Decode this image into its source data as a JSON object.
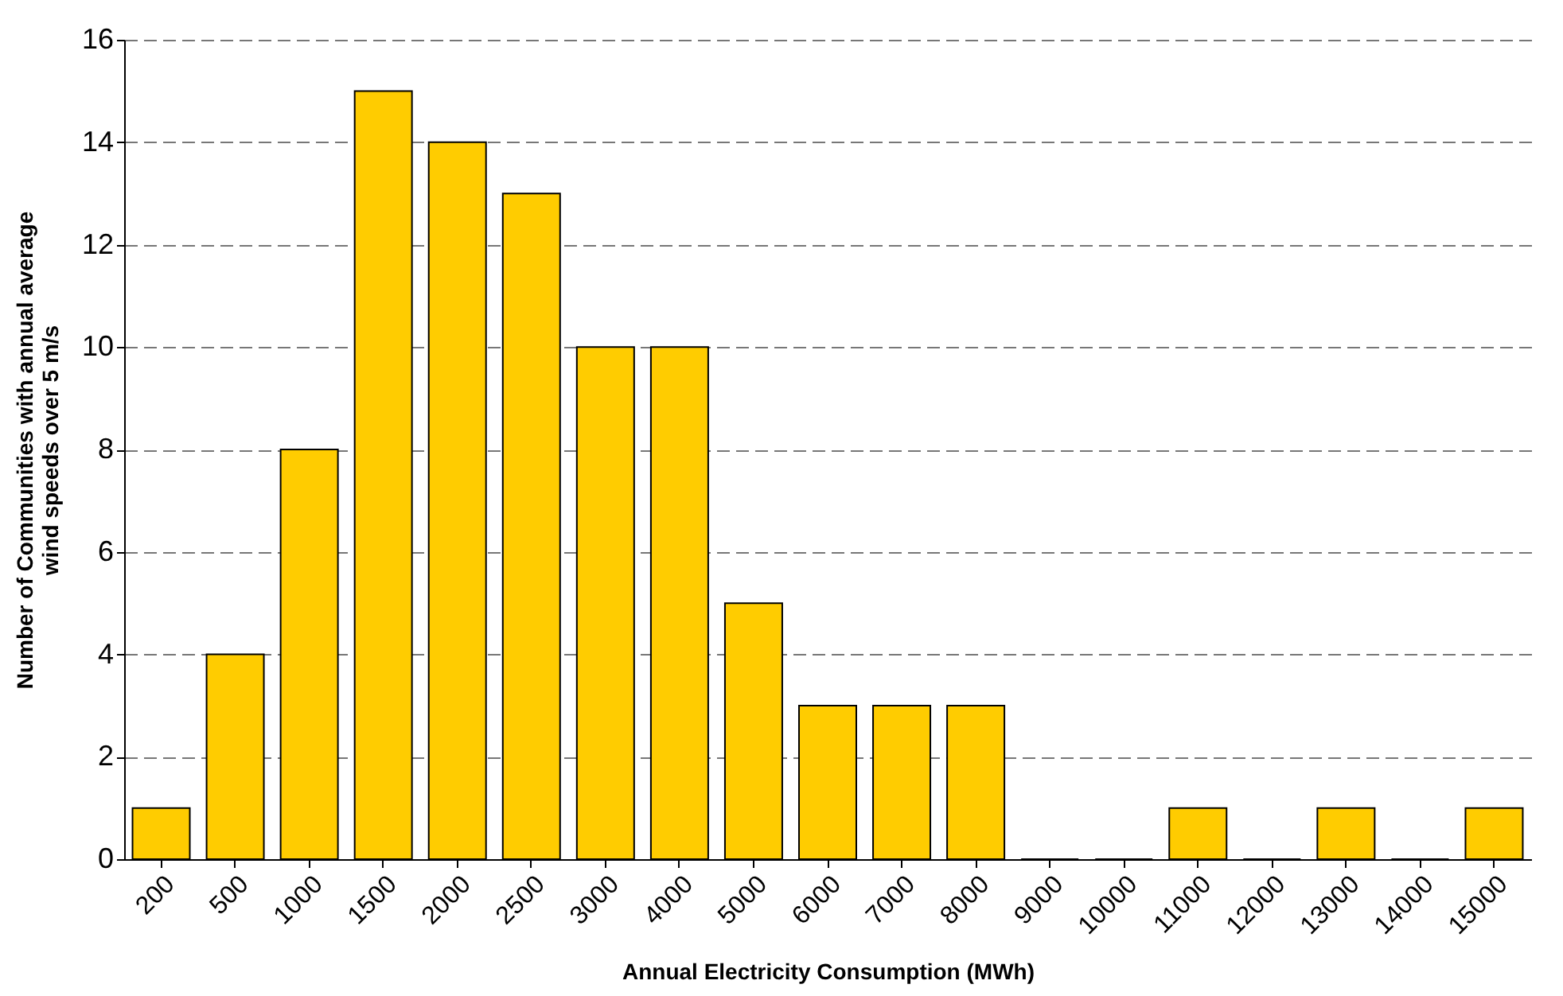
{
  "chart_data": {
    "type": "bar",
    "xlabel": "Annual Electricity Consumption (MWh)",
    "ylabel": "Number of Communities with annual average wind speeds over 5 m/s",
    "categories": [
      "200",
      "500",
      "1000",
      "1500",
      "2000",
      "2500",
      "3000",
      "4000",
      "5000",
      "6000",
      "7000",
      "8000",
      "9000",
      "10000",
      "11000",
      "12000",
      "13000",
      "14000",
      "15000"
    ],
    "values": [
      1,
      4,
      8,
      15,
      14,
      13,
      10,
      10,
      5,
      3,
      3,
      3,
      0,
      0,
      1,
      0,
      1,
      0,
      1
    ],
    "color": "#ffcc00",
    "ylim": [
      0,
      16
    ],
    "yticks": [
      0,
      2,
      4,
      6,
      8,
      10,
      12,
      14,
      16
    ],
    "grid": "y"
  }
}
